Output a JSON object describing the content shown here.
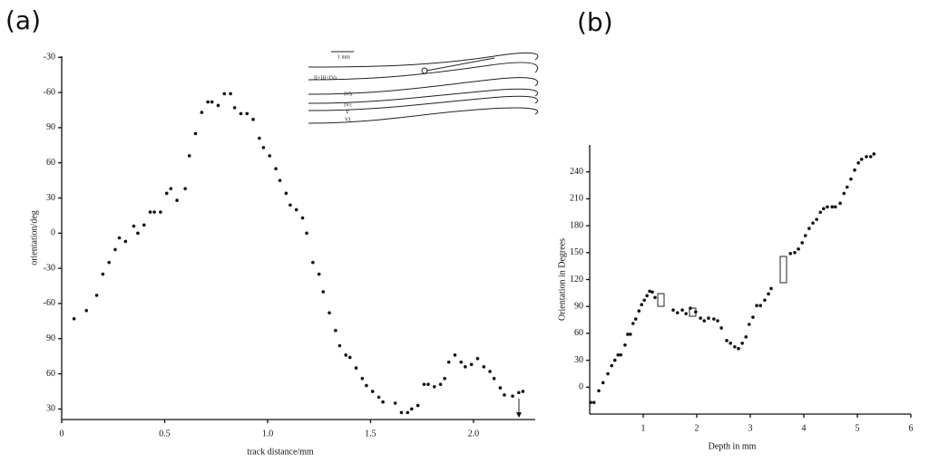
{
  "chart_data": [
    {
      "type": "scatter",
      "panel_label": "(a)",
      "x_label": "track distance/mm",
      "y_label": "orientation/deg",
      "color": "#111111",
      "xlim": [
        0,
        2.3
      ],
      "ylim": [
        21,
        331
      ],
      "xticks": [
        0,
        0.5,
        {
          "value": 1,
          "label": "1.0"
        },
        1.5,
        {
          "value": 2,
          "label": "2.0"
        }
      ],
      "yticks": [
        30,
        60,
        90,
        {
          "value": 120,
          "label": "-60"
        },
        {
          "value": 150,
          "label": "-30"
        },
        {
          "value": 180,
          "label": "0"
        },
        {
          "value": 210,
          "label": "30"
        },
        {
          "value": 240,
          "label": "60"
        },
        {
          "value": 270,
          "label": "90"
        },
        {
          "value": 300,
          "label": "-60"
        },
        {
          "value": 330,
          "label": "-30"
        }
      ],
      "inset_labels": [
        "1 mm",
        "II+III+IVa",
        "IVb",
        "IVc",
        "V",
        "VI"
      ],
      "x": [
        0.06,
        0.12,
        0.17,
        0.2,
        0.23,
        0.26,
        0.28,
        0.31,
        0.35,
        0.37,
        0.4,
        0.43,
        0.45,
        0.48,
        0.51,
        0.53,
        0.56,
        0.6,
        0.62,
        0.65,
        0.68,
        0.71,
        0.73,
        0.76,
        0.79,
        0.82,
        0.84,
        0.87,
        0.9,
        0.93,
        0.96,
        0.98,
        1.01,
        1.04,
        1.06,
        1.09,
        1.11,
        1.14,
        1.17,
        1.19,
        1.22,
        1.25,
        1.27,
        1.3,
        1.33,
        1.35,
        1.38,
        1.4,
        1.43,
        1.46,
        1.48,
        1.51,
        1.54,
        1.56,
        1.62,
        1.65,
        1.68,
        1.7,
        1.73,
        1.76,
        1.78,
        1.81,
        1.84,
        1.86,
        1.88,
        1.91,
        1.94,
        1.96,
        1.99,
        2.02,
        2.05,
        2.08,
        2.1,
        2.13,
        2.15,
        2.19,
        2.22,
        2.24
      ],
      "values": [
        107,
        114,
        127,
        145,
        155,
        166,
        176,
        173,
        186,
        180,
        187,
        198,
        198,
        198,
        214,
        218,
        208,
        218,
        246,
        265,
        283,
        292,
        292,
        289,
        299,
        299,
        287,
        282,
        282,
        277,
        261,
        253,
        246,
        235,
        225,
        214,
        204,
        200,
        193,
        180,
        155,
        145,
        130,
        112,
        97,
        84,
        76,
        74,
        65,
        56,
        50,
        45,
        40,
        36,
        35,
        27,
        27,
        30,
        33,
        51,
        51,
        49,
        51,
        56,
        70,
        76,
        70,
        66,
        68,
        73,
        66,
        62,
        56,
        48,
        42,
        41,
        44,
        45
      ]
    },
    {
      "type": "scatter",
      "panel_label": "(b)",
      "x_label": "Depth in mm",
      "y_label": "Orientation in Degrees",
      "color": "#111111",
      "xlim": [
        0,
        6
      ],
      "ylim": [
        -30,
        270
      ],
      "xticks": [
        1,
        2,
        3,
        4,
        5,
        6
      ],
      "yticks": [
        0,
        30,
        60,
        90,
        120,
        150,
        180,
        210,
        240
      ],
      "x": [
        0.02,
        0.08,
        0.17,
        0.25,
        0.34,
        0.41,
        0.47,
        0.53,
        0.58,
        0.66,
        0.71,
        0.76,
        0.81,
        0.86,
        0.92,
        0.97,
        1.02,
        1.07,
        1.12,
        1.17,
        1.22,
        1.56,
        1.64,
        1.73,
        1.8,
        1.88,
        1.98,
        2.07,
        2.14,
        2.22,
        2.32,
        2.39,
        2.46,
        2.56,
        2.63,
        2.71,
        2.78,
        2.85,
        2.92,
        2.98,
        3.05,
        3.12,
        3.19,
        3.27,
        3.34,
        3.39,
        3.75,
        3.83,
        3.9,
        3.97,
        4.03,
        4.1,
        4.17,
        4.24,
        4.31,
        4.37,
        4.44,
        4.53,
        4.59,
        4.68,
        4.75,
        4.81,
        4.88,
        4.95,
        5.02,
        5.08,
        5.17,
        5.25,
        5.31
      ],
      "values": [
        -17,
        -17,
        -4,
        5,
        15,
        24,
        30,
        36,
        36,
        47,
        59,
        59,
        71,
        76,
        85,
        92,
        97,
        102,
        107,
        106,
        100,
        86,
        83,
        86,
        82,
        88,
        84,
        77,
        74,
        77,
        76,
        74,
        66,
        52,
        49,
        45,
        43,
        49,
        56,
        70,
        78,
        91,
        91,
        97,
        104,
        110,
        149,
        150,
        154,
        161,
        169,
        177,
        183,
        187,
        195,
        199,
        201,
        201,
        201,
        205,
        216,
        223,
        232,
        242,
        250,
        254,
        257,
        257,
        260
      ]
    }
  ]
}
